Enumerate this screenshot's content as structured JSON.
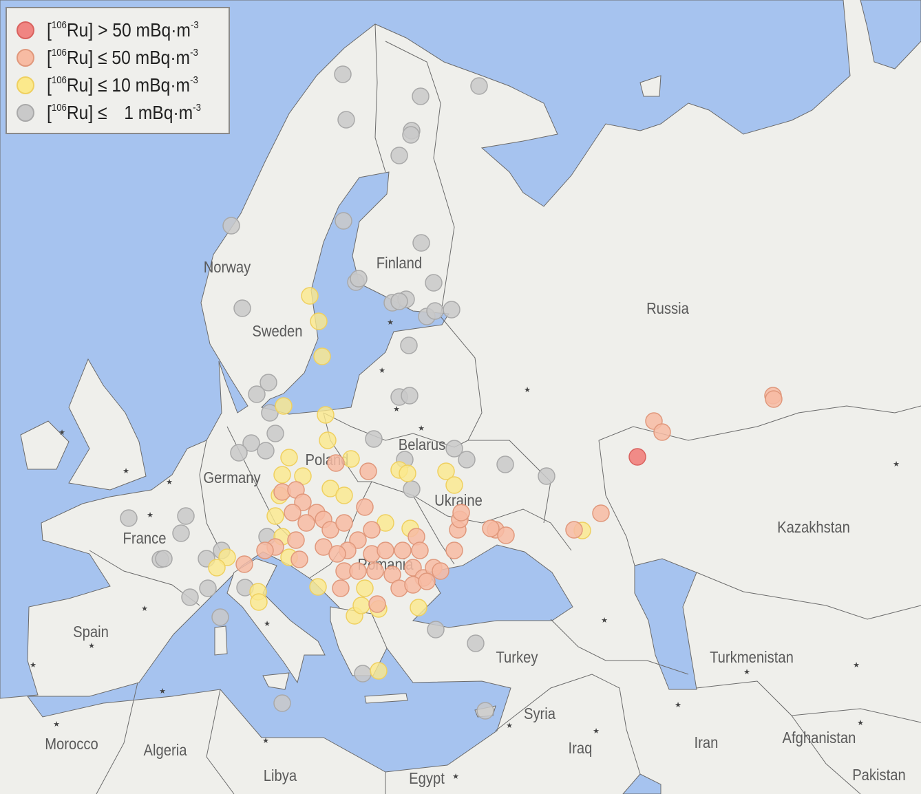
{
  "legend": {
    "items": [
      {
        "open": "[",
        "isotope_mass": "106",
        "text": "Ru] > 50 mBq·m",
        "exponent": "-3",
        "color": "#f08582"
      },
      {
        "open": "[",
        "isotope_mass": "106",
        "text": "Ru] ≤ 50 mBq·m",
        "exponent": "-3",
        "color": "#f7bba3"
      },
      {
        "open": "[",
        "isotope_mass": "106",
        "text": "Ru] ≤ 10 mBq·m",
        "exponent": "-3",
        "color": "#fbe98c"
      },
      {
        "open": "[",
        "isotope_mass": "106",
        "text": "Ru] ≤   1 mBq·m",
        "exponent": "-3",
        "color": "#c9c9c9"
      }
    ]
  },
  "map": {
    "colors": {
      "sea": "#a6c3ef",
      "land": "#efefeb",
      "border": "#6b6b6b"
    },
    "countries": [
      "Norway",
      "Finland",
      "Sweden",
      "Russia",
      "Belarus",
      "Poland",
      "Germany",
      "Ukraine",
      "France",
      "Kazakhstan",
      "Romania",
      "Spain",
      "Turkey",
      "Turkmenistan",
      "Syria",
      "Morocco",
      "Algeria",
      "Iraq",
      "Iran",
      "Afghanistan",
      "Libya",
      "Egypt",
      "Pakistan"
    ],
    "capital_marker_icon": "star-icon"
  }
}
